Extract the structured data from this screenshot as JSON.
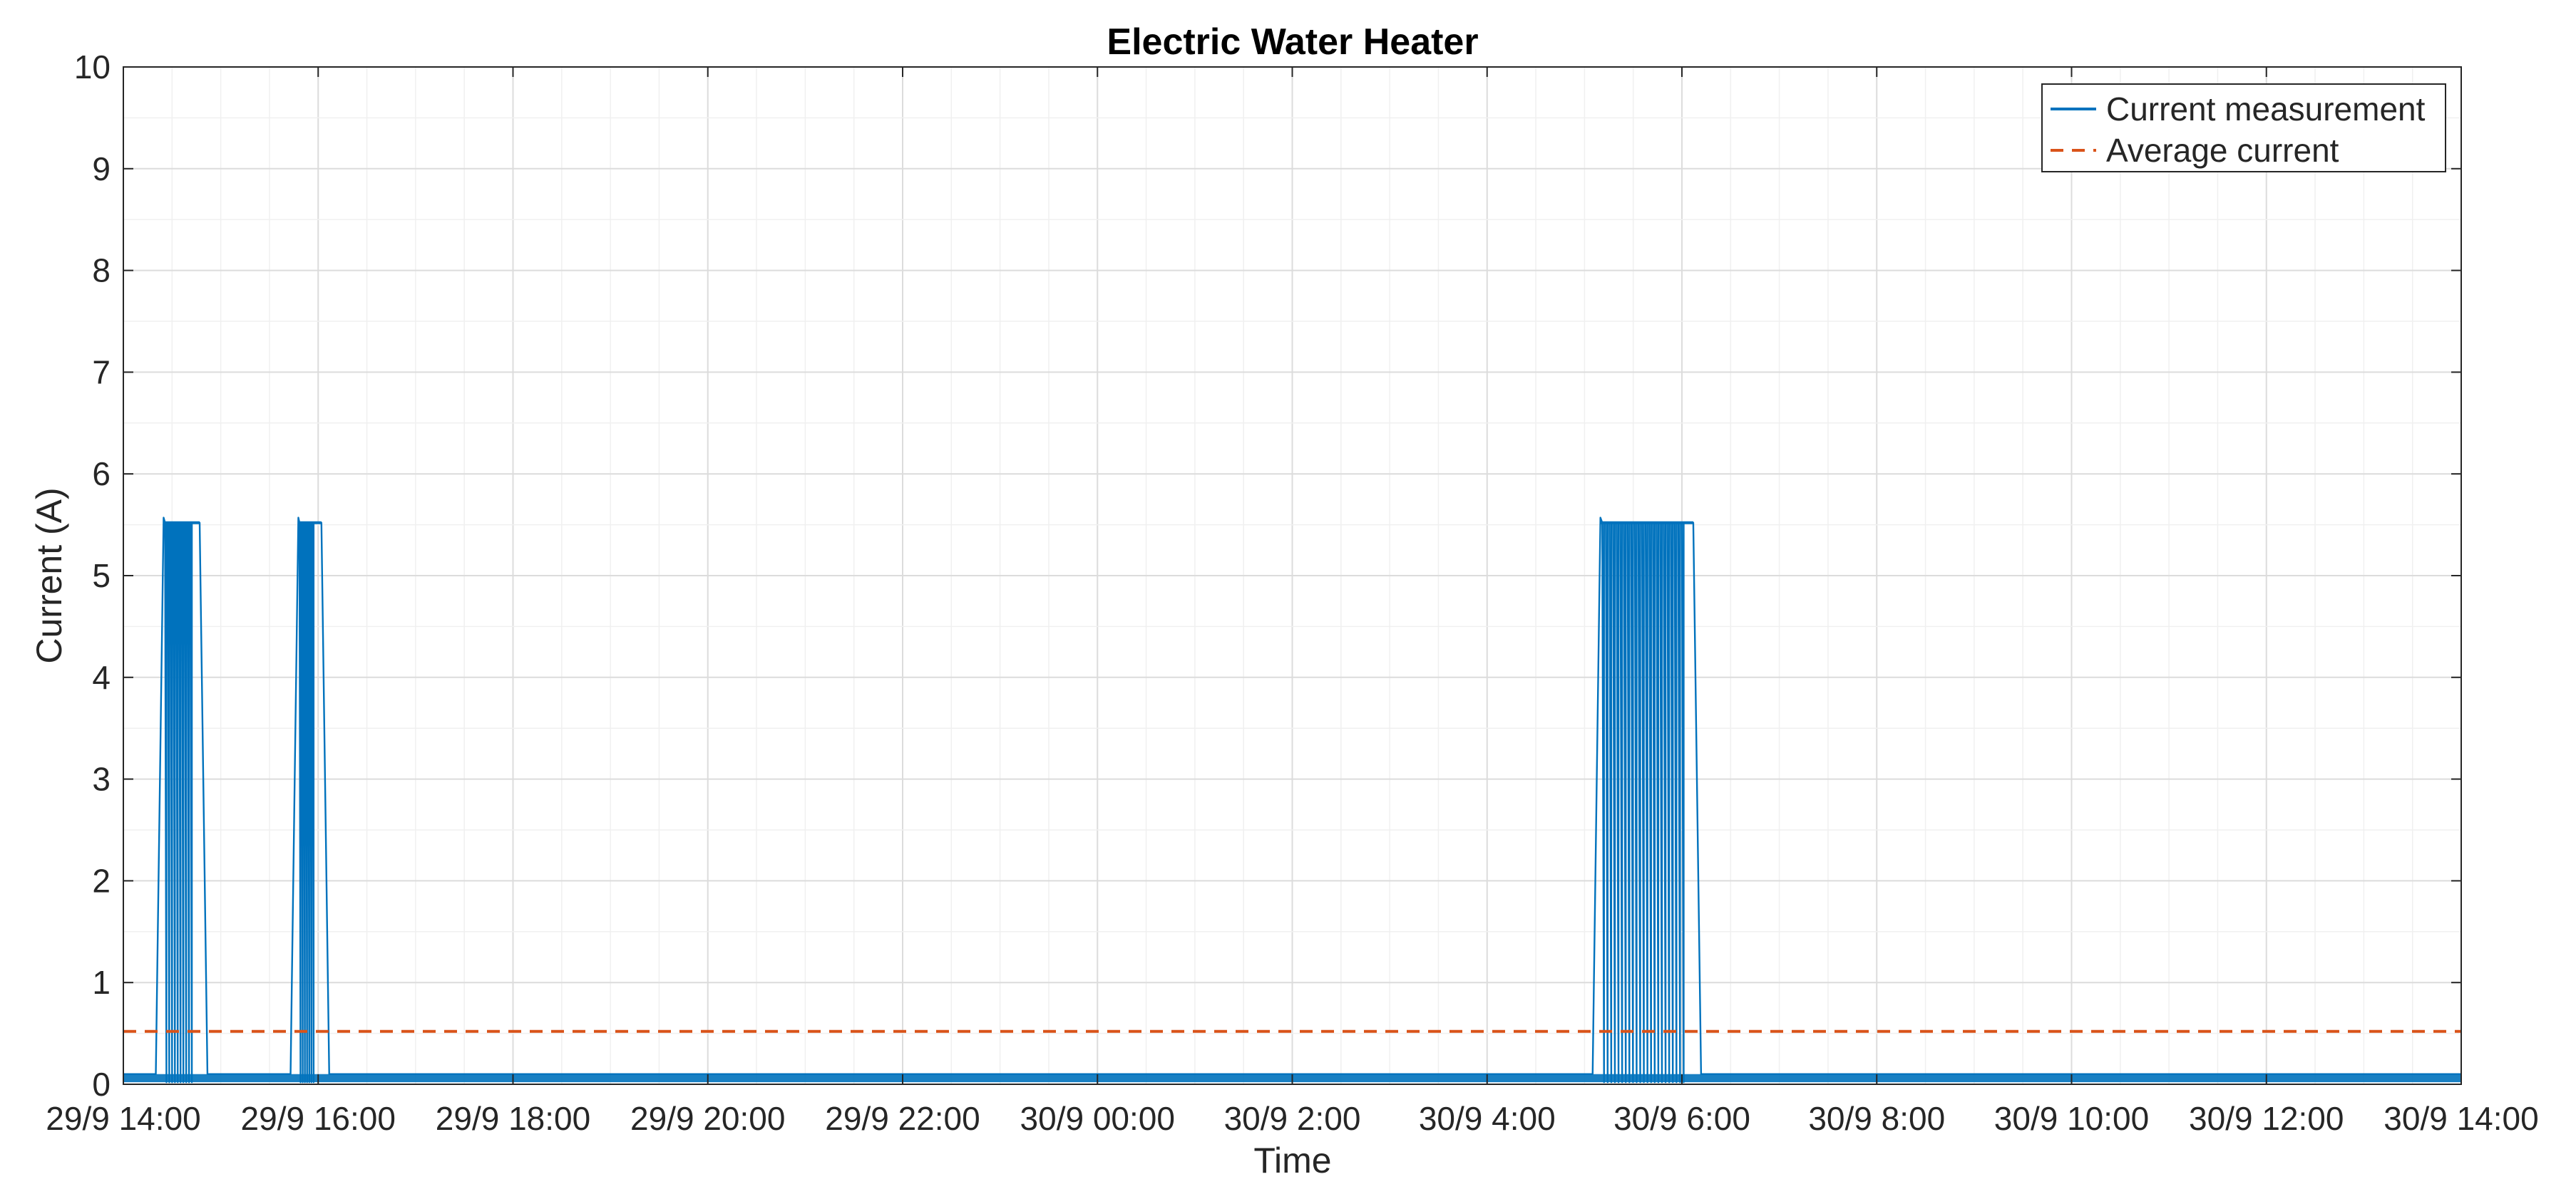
{
  "chart_data": {
    "type": "line",
    "title": "Electric Water Heater",
    "xlabel": "Time",
    "ylabel": "Current (A)",
    "xlim_hours": [
      0,
      24
    ],
    "ylim": [
      0,
      10
    ],
    "x_ticks": [
      "29/9 14:00",
      "29/9 16:00",
      "29/9 18:00",
      "29/9 20:00",
      "29/9 22:00",
      "30/9 00:00",
      "30/9 2:00",
      "30/9 4:00",
      "30/9 6:00",
      "30/9 8:00",
      "30/9 10:00",
      "30/9 12:00",
      "30/9 14:00"
    ],
    "y_ticks": [
      "0",
      "1",
      "2",
      "3",
      "4",
      "5",
      "6",
      "7",
      "8",
      "9",
      "10"
    ],
    "grid": true,
    "legend_position": "top-right",
    "series": [
      {
        "name": "Current measurement",
        "color": "#0072BD",
        "style": "solid",
        "baseline": 0.1,
        "cycle_low": 0.02,
        "on_periods": [
          {
            "start": "29/9 14:20",
            "end": "29/9 14:47",
            "level": 5.52
          },
          {
            "start": "29/9 15:43",
            "end": "29/9 16:02",
            "level": 5.52
          },
          {
            "start": "30/9 5:05",
            "end": "30/9 6:07",
            "level": 5.52
          }
        ]
      },
      {
        "name": "Average current",
        "color": "#D95319",
        "style": "dashed",
        "value": 0.52
      }
    ]
  },
  "colors": {
    "grid": "#e6e6e6",
    "axis": "#262626",
    "background": "#ffffff"
  }
}
